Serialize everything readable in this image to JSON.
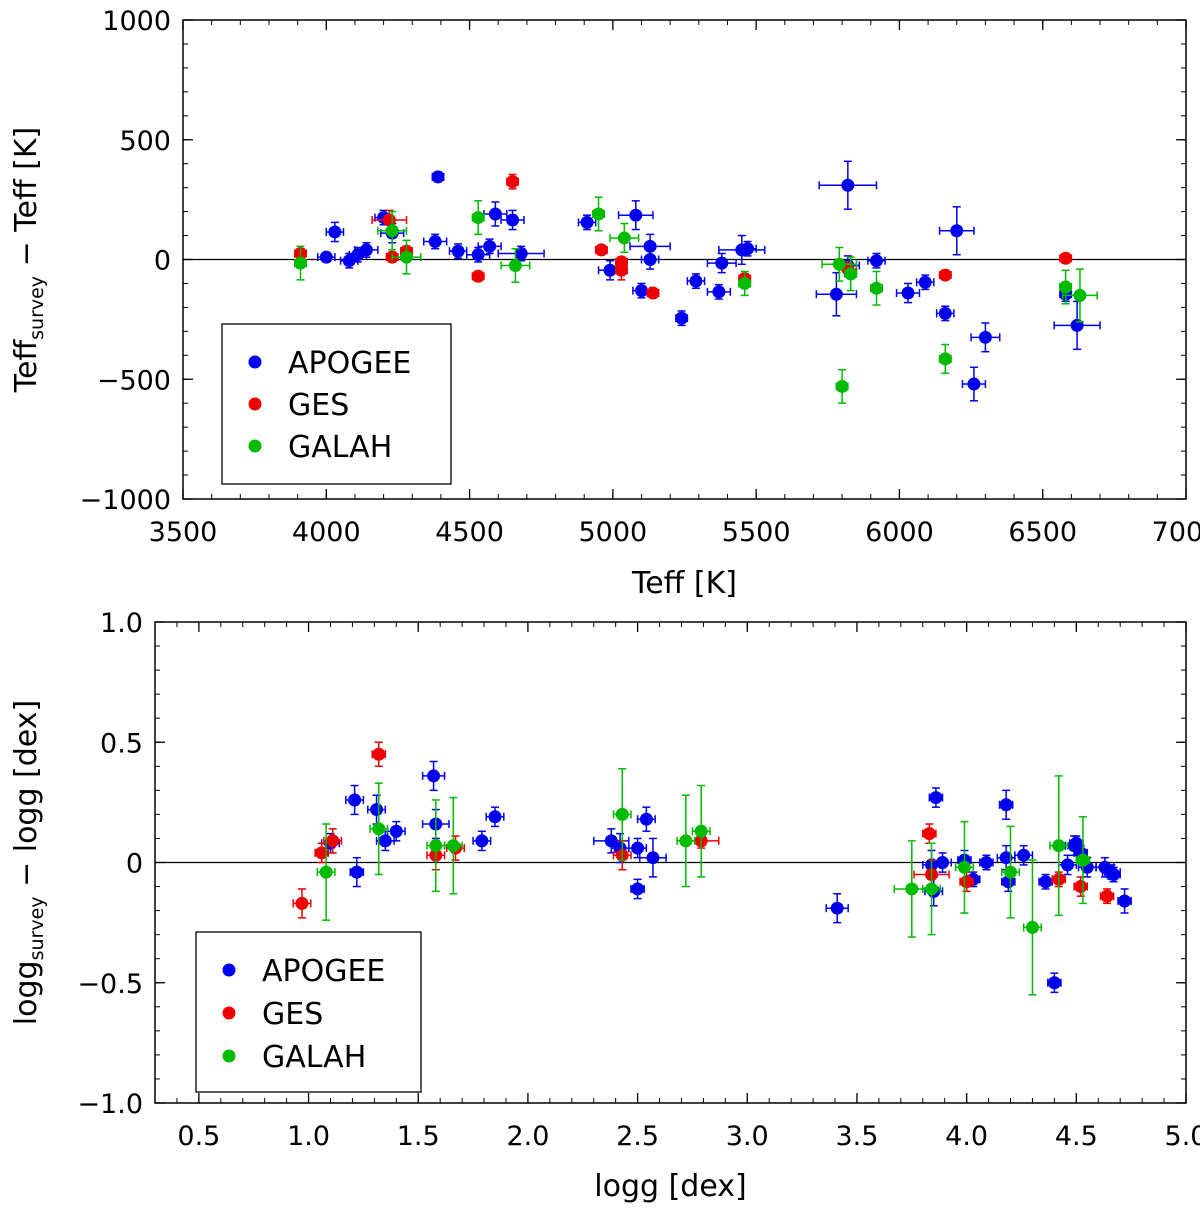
{
  "chart_data": [
    {
      "type": "scatter",
      "id": "teff",
      "title": "",
      "xlabel": "Teff  [K]",
      "ylabel_main": "Teff",
      "ylabel_sub": "survey",
      "ylabel_rest": " − Teff  [K]",
      "xlim": [
        3500,
        7000
      ],
      "ylim": [
        -1000,
        1000
      ],
      "xticks": [
        3500,
        4000,
        4500,
        5000,
        5500,
        6000,
        6500,
        7000
      ],
      "xtick_labels": [
        "3500",
        "4000",
        "4500",
        "5000",
        "5500",
        "6000",
        "6500",
        "7000"
      ],
      "yticks": [
        -1000,
        -500,
        0,
        500,
        1000
      ],
      "ytick_labels": [
        "−1000",
        "−500",
        "0",
        "500",
        "1000"
      ],
      "xminor": 100,
      "yminor": 100,
      "reference_line": 0,
      "legend": {
        "position": "lower-left",
        "entries": [
          "APOGEE",
          "GES",
          "GALAH"
        ]
      },
      "series": [
        {
          "name": "APOGEE",
          "color": "#0000ee",
          "points": [
            [
              4000,
              10,
              30,
              15
            ],
            [
              4030,
              115,
              30,
              40
            ],
            [
              4080,
              -5,
              30,
              30
            ],
            [
              4110,
              20,
              30,
              30
            ],
            [
              4140,
              40,
              40,
              30
            ],
            [
              4200,
              175,
              30,
              30
            ],
            [
              4230,
              110,
              40,
              40
            ],
            [
              4380,
              75,
              40,
              30
            ],
            [
              4390,
              345,
              20,
              20
            ],
            [
              4460,
              35,
              30,
              30
            ],
            [
              4530,
              20,
              40,
              30
            ],
            [
              4570,
              55,
              40,
              30
            ],
            [
              4590,
              190,
              40,
              50
            ],
            [
              4650,
              165,
              40,
              40
            ],
            [
              4680,
              25,
              80,
              30
            ],
            [
              4910,
              155,
              30,
              30
            ],
            [
              4990,
              -45,
              40,
              40
            ],
            [
              5080,
              185,
              60,
              60
            ],
            [
              5100,
              -130,
              30,
              30
            ],
            [
              5130,
              55,
              70,
              50
            ],
            [
              5130,
              0,
              30,
              40
            ],
            [
              5240,
              -245,
              20,
              30
            ],
            [
              5290,
              -90,
              30,
              30
            ],
            [
              5370,
              -135,
              40,
              30
            ],
            [
              5380,
              -15,
              50,
              40
            ],
            [
              5450,
              40,
              80,
              60
            ],
            [
              5470,
              45,
              30,
              30
            ],
            [
              5780,
              -145,
              70,
              90
            ],
            [
              5820,
              310,
              100,
              100
            ],
            [
              5820,
              -25,
              40,
              40
            ],
            [
              5920,
              -5,
              30,
              30
            ],
            [
              6030,
              -140,
              40,
              40
            ],
            [
              6090,
              -95,
              30,
              30
            ],
            [
              6160,
              -225,
              30,
              30
            ],
            [
              6200,
              120,
              60,
              100
            ],
            [
              6260,
              -520,
              40,
              70
            ],
            [
              6300,
              -325,
              50,
              60
            ],
            [
              6580,
              -145,
              20,
              30
            ],
            [
              6620,
              -275,
              80,
              100
            ]
          ]
        },
        {
          "name": "GES",
          "color": "#ee0000",
          "points": [
            [
              3910,
              25,
              20,
              20
            ],
            [
              4220,
              165,
              60,
              40
            ],
            [
              4230,
              10,
              20,
              20
            ],
            [
              4280,
              35,
              20,
              20
            ],
            [
              4530,
              -70,
              20,
              20
            ],
            [
              4650,
              325,
              20,
              30
            ],
            [
              4960,
              40,
              20,
              20
            ],
            [
              5030,
              -10,
              20,
              20
            ],
            [
              5030,
              -45,
              20,
              40
            ],
            [
              5140,
              -140,
              20,
              20
            ],
            [
              5460,
              -80,
              20,
              20
            ],
            [
              5820,
              -40,
              30,
              30
            ],
            [
              6160,
              -65,
              20,
              20
            ],
            [
              6580,
              5,
              20,
              20
            ]
          ]
        },
        {
          "name": "GALAH",
          "color": "#00bb00",
          "points": [
            [
              3910,
              -15,
              20,
              70
            ],
            [
              4230,
              120,
              50,
              80
            ],
            [
              4280,
              10,
              50,
              70
            ],
            [
              4530,
              175,
              20,
              70
            ],
            [
              4660,
              -25,
              50,
              70
            ],
            [
              4950,
              190,
              20,
              70
            ],
            [
              5040,
              90,
              50,
              60
            ],
            [
              5460,
              -100,
              20,
              50
            ],
            [
              5790,
              -20,
              60,
              70
            ],
            [
              5800,
              -530,
              20,
              70
            ],
            [
              5830,
              -60,
              20,
              70
            ],
            [
              5920,
              -120,
              20,
              70
            ],
            [
              6160,
              -415,
              20,
              60
            ],
            [
              6580,
              -115,
              20,
              70
            ],
            [
              6630,
              -150,
              60,
              110
            ]
          ]
        }
      ]
    },
    {
      "type": "scatter",
      "id": "logg",
      "title": "",
      "xlabel": "logg  [dex]",
      "ylabel_main": "logg",
      "ylabel_sub": "survey",
      "ylabel_rest": " − logg  [dex]",
      "xlim": [
        0.3,
        5.0
      ],
      "ylim": [
        -1.0,
        1.0
      ],
      "xticks": [
        0.5,
        1.0,
        1.5,
        2.0,
        2.5,
        3.0,
        3.5,
        4.0,
        4.5,
        5.0
      ],
      "xtick_labels": [
        "0.5",
        "1.0",
        "1.5",
        "2.0",
        "2.5",
        "3.0",
        "3.5",
        "4.0",
        "4.5",
        "5.0"
      ],
      "yticks": [
        -1.0,
        -0.5,
        0,
        0.5,
        1.0
      ],
      "ytick_labels": [
        "−1.0",
        "−0.5",
        "0",
        "0.5",
        "1.0"
      ],
      "xminor": 0.1,
      "yminor": 0.1,
      "reference_line": 0,
      "legend": {
        "position": "lower-left",
        "entries": [
          "APOGEE",
          "GES",
          "GALAH"
        ]
      },
      "series": [
        {
          "name": "APOGEE",
          "color": "#0000ee",
          "points": [
            [
              1.1,
              0.08,
              0.04,
              0.04
            ],
            [
              1.21,
              0.26,
              0.04,
              0.06
            ],
            [
              1.22,
              -0.04,
              0.03,
              0.06
            ],
            [
              1.31,
              0.22,
              0.04,
              0.06
            ],
            [
              1.35,
              0.09,
              0.04,
              0.04
            ],
            [
              1.4,
              0.13,
              0.04,
              0.04
            ],
            [
              1.57,
              0.36,
              0.05,
              0.06
            ],
            [
              1.58,
              0.16,
              0.06,
              0.06
            ],
            [
              1.79,
              0.09,
              0.04,
              0.04
            ],
            [
              1.85,
              0.19,
              0.04,
              0.04
            ],
            [
              2.38,
              0.09,
              0.08,
              0.05
            ],
            [
              2.42,
              0.06,
              0.04,
              0.06
            ],
            [
              2.5,
              -0.11,
              0.03,
              0.04
            ],
            [
              2.5,
              0.06,
              0.04,
              0.04
            ],
            [
              2.54,
              0.18,
              0.04,
              0.05
            ],
            [
              2.57,
              0.02,
              0.06,
              0.08
            ],
            [
              3.41,
              -0.19,
              0.05,
              0.06
            ],
            [
              3.84,
              -0.01,
              0.04,
              0.06
            ],
            [
              3.85,
              -0.12,
              0.04,
              0.06
            ],
            [
              3.86,
              0.27,
              0.03,
              0.04
            ],
            [
              3.89,
              0.0,
              0.04,
              0.04
            ],
            [
              3.99,
              0.01,
              0.03,
              0.04
            ],
            [
              4.03,
              -0.07,
              0.03,
              0.03
            ],
            [
              4.09,
              0.0,
              0.03,
              0.03
            ],
            [
              4.18,
              0.02,
              0.04,
              0.05
            ],
            [
              4.18,
              0.24,
              0.03,
              0.06
            ],
            [
              4.19,
              -0.08,
              0.03,
              0.04
            ],
            [
              4.26,
              0.03,
              0.04,
              0.04
            ],
            [
              4.36,
              -0.08,
              0.03,
              0.03
            ],
            [
              4.4,
              -0.5,
              0.03,
              0.04
            ],
            [
              4.46,
              -0.01,
              0.04,
              0.04
            ],
            [
              4.49,
              0.07,
              0.04,
              0.04
            ],
            [
              4.5,
              0.08,
              0.03,
              0.03
            ],
            [
              4.52,
              0.04,
              0.03,
              0.03
            ],
            [
              4.55,
              -0.02,
              0.04,
              0.04
            ],
            [
              4.63,
              -0.02,
              0.04,
              0.04
            ],
            [
              4.66,
              -0.04,
              0.04,
              0.03
            ],
            [
              4.67,
              -0.05,
              0.03,
              0.03
            ],
            [
              4.72,
              -0.16,
              0.03,
              0.05
            ]
          ]
        },
        {
          "name": "GES",
          "color": "#ee0000",
          "points": [
            [
              0.97,
              -0.17,
              0.04,
              0.06
            ],
            [
              1.06,
              0.04,
              0.03,
              0.04
            ],
            [
              1.11,
              0.09,
              0.04,
              0.05
            ],
            [
              1.32,
              0.45,
              0.03,
              0.05
            ],
            [
              1.58,
              0.03,
              0.04,
              0.06
            ],
            [
              1.67,
              0.06,
              0.04,
              0.05
            ],
            [
              2.43,
              0.03,
              0.04,
              0.06
            ],
            [
              2.79,
              0.09,
              0.08,
              0.03
            ],
            [
              3.83,
              0.12,
              0.03,
              0.04
            ],
            [
              3.84,
              -0.05,
              0.08,
              0.06
            ],
            [
              4.0,
              -0.08,
              0.03,
              0.04
            ],
            [
              4.42,
              -0.07,
              0.03,
              0.03
            ],
            [
              4.52,
              -0.1,
              0.03,
              0.04
            ],
            [
              4.64,
              -0.14,
              0.03,
              0.03
            ]
          ]
        },
        {
          "name": "GALAH",
          "color": "#00bb00",
          "points": [
            [
              1.08,
              -0.04,
              0.04,
              0.2
            ],
            [
              1.32,
              0.14,
              0.04,
              0.19
            ],
            [
              1.58,
              0.07,
              0.04,
              0.19
            ],
            [
              1.66,
              0.07,
              0.04,
              0.2
            ],
            [
              2.43,
              0.2,
              0.04,
              0.19
            ],
            [
              2.72,
              0.09,
              0.04,
              0.19
            ],
            [
              2.79,
              0.13,
              0.04,
              0.19
            ],
            [
              3.75,
              -0.11,
              0.08,
              0.2
            ],
            [
              3.84,
              -0.11,
              0.04,
              0.19
            ],
            [
              3.99,
              -0.02,
              0.04,
              0.19
            ],
            [
              4.2,
              -0.04,
              0.04,
              0.19
            ],
            [
              4.3,
              -0.27,
              0.04,
              0.28
            ],
            [
              4.42,
              0.07,
              0.04,
              0.29
            ],
            [
              4.53,
              0.01,
              0.03,
              0.18
            ]
          ]
        }
      ]
    }
  ]
}
